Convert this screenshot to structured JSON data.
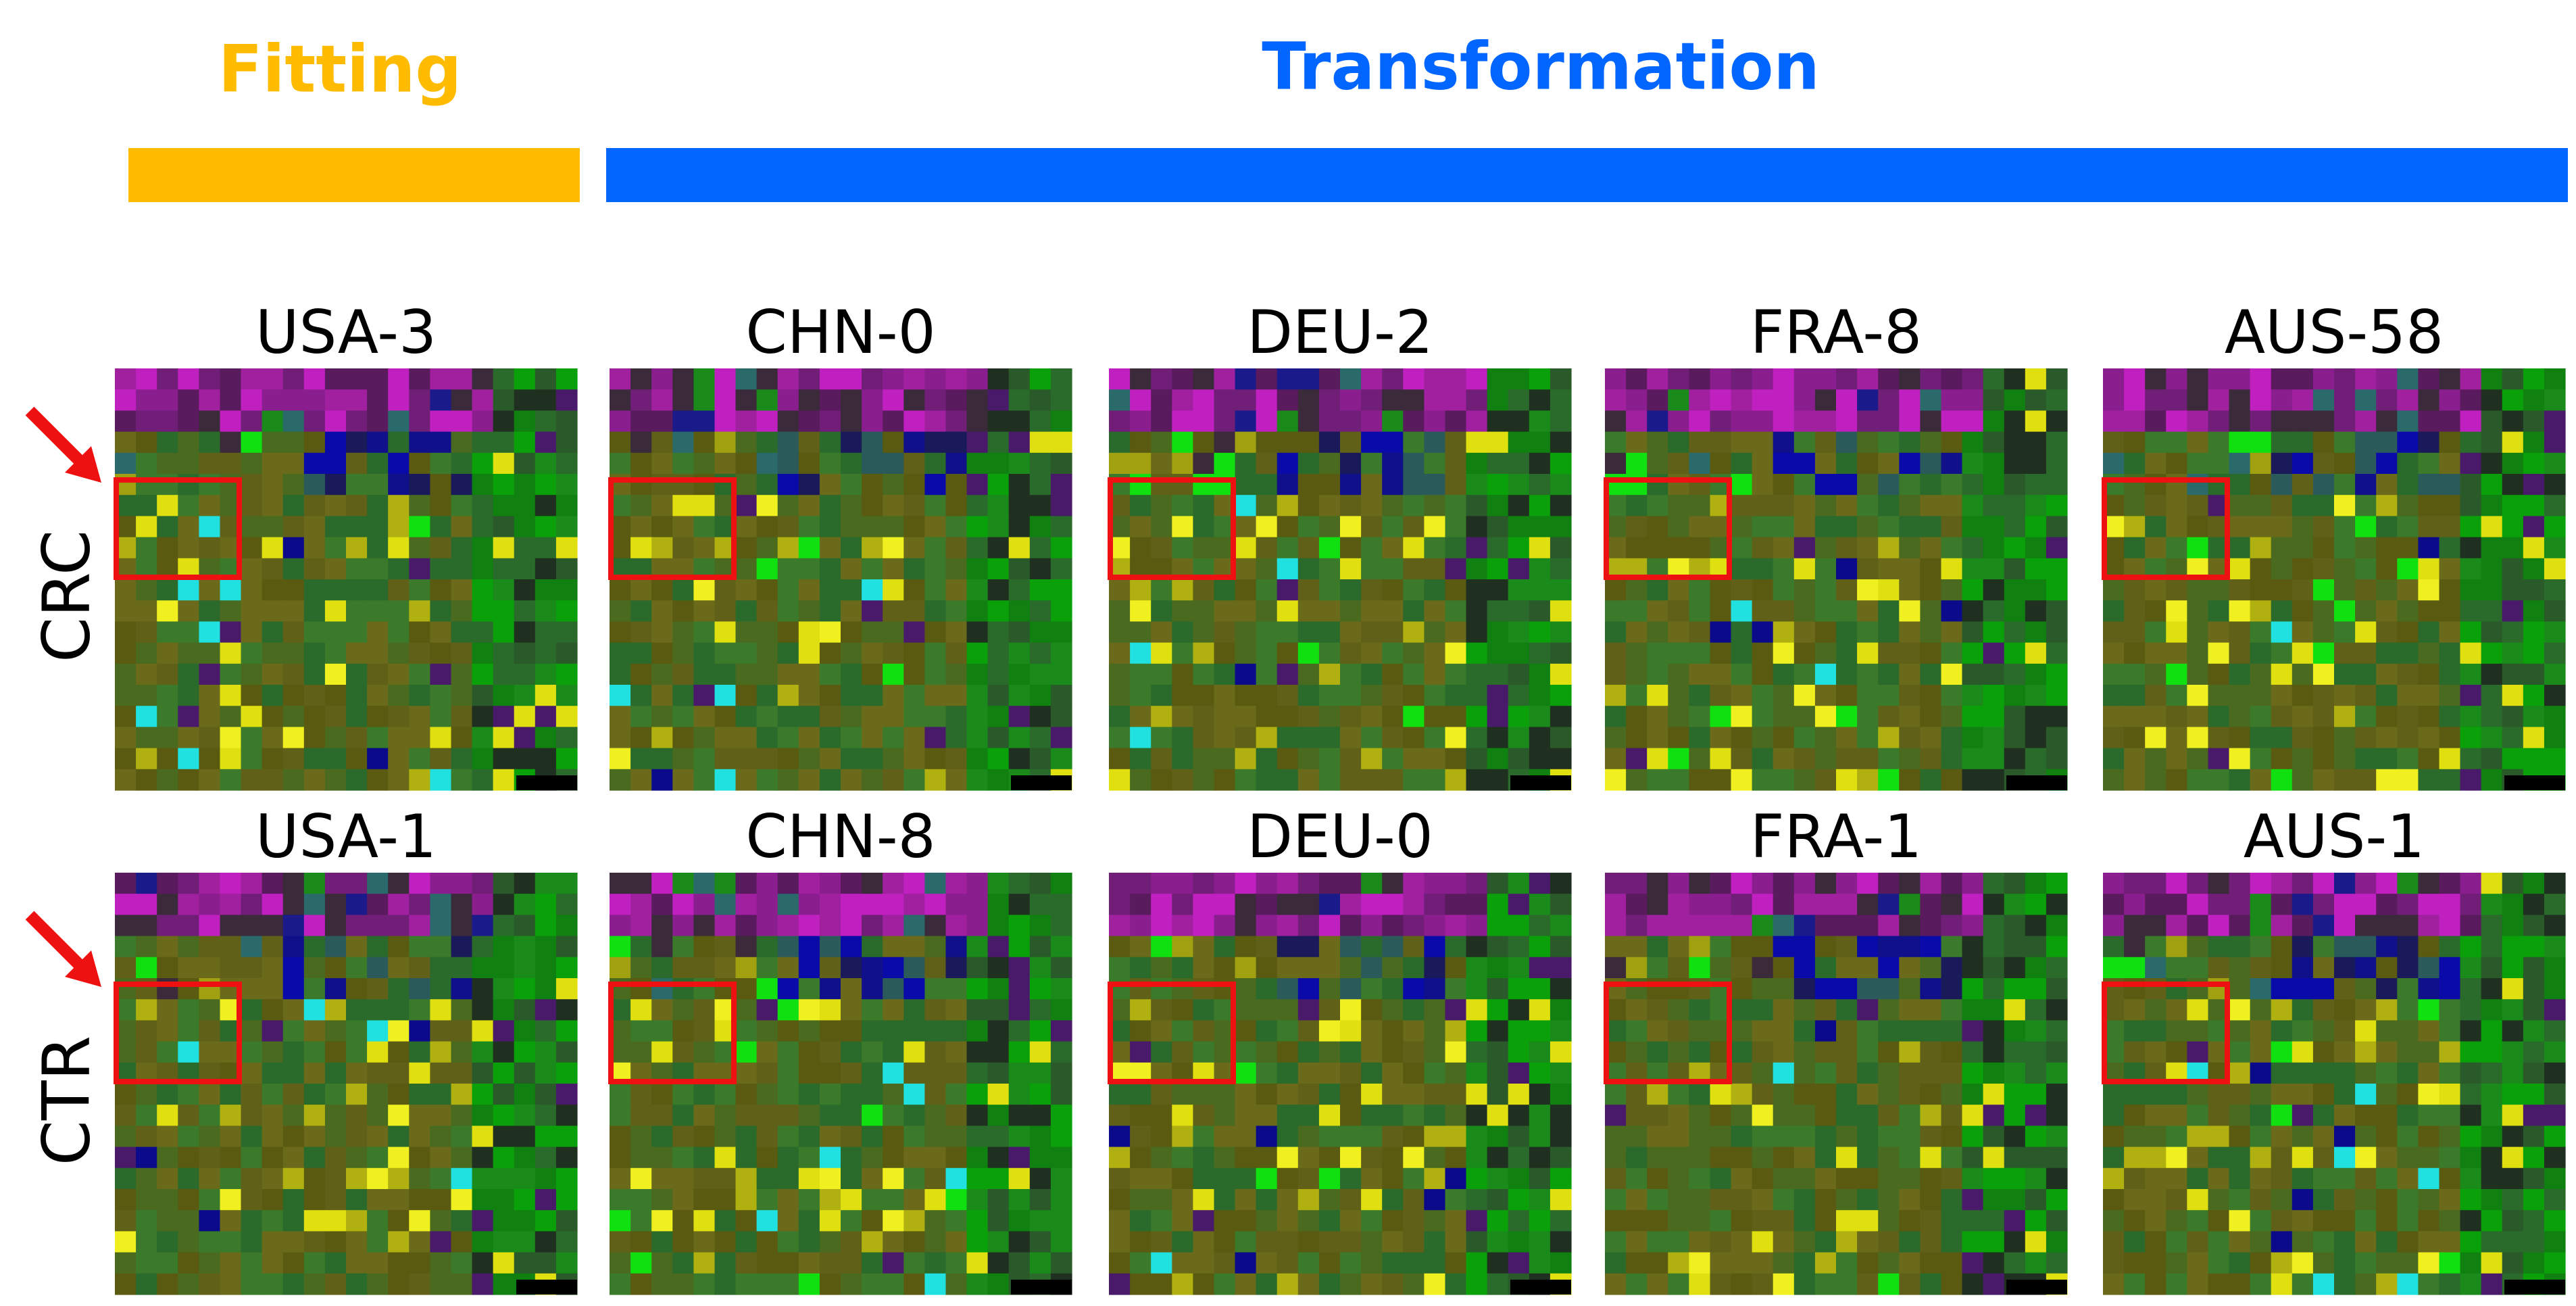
{
  "header": {
    "fitting": "Fitting",
    "transformation": "Transformation"
  },
  "rows": [
    {
      "label": "CRC",
      "panels": [
        "USA-3",
        "CHN-0",
        "DEU-2",
        "FRA-8",
        "AUS-58"
      ]
    },
    {
      "label": "CTR",
      "panels": [
        "USA-1",
        "CHN-8",
        "DEU-0",
        "FRA-1",
        "AUS-1"
      ]
    }
  ]
}
